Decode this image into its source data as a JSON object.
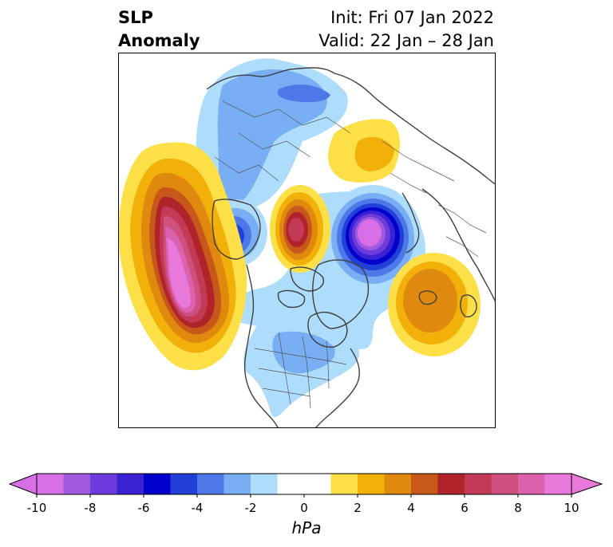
{
  "title": {
    "left_line1": "SLP",
    "left_line2": "Anomaly",
    "right_line1": "Init: Fri 07 Jan 2022",
    "right_line2": "Valid: 22 Jan – 28 Jan"
  },
  "colorbar": {
    "ticks": [
      "-10",
      "-8",
      "-6",
      "-4",
      "-2",
      "0",
      "2",
      "4",
      "6",
      "8",
      "10"
    ],
    "unit": "hPa",
    "colors": [
      "#d96fe6",
      "#a15adf",
      "#6d3bdc",
      "#3a22d4",
      "#0000cd",
      "#2140d8",
      "#4e78e8",
      "#78aef3",
      "#aedcfb",
      "#ffffff",
      "#ffffff",
      "#fde047",
      "#f2b10a",
      "#df8a0e",
      "#c8571a",
      "#b0232a",
      "#c23a55",
      "#cf4f7f",
      "#db63ad",
      "#e878da"
    ],
    "under_color": "#d96fe6",
    "over_color": "#e878da"
  },
  "map": {
    "anomalies": [
      {
        "region": "north-pacific-high",
        "max_hpa": 10
      },
      {
        "region": "alaska-low",
        "min_hpa": -5
      },
      {
        "region": "central-arctic-high",
        "max_hpa": 7
      },
      {
        "region": "barents-kara-low",
        "min_hpa": -10
      },
      {
        "region": "north-atlantic-high",
        "max_hpa": 5
      },
      {
        "region": "eastern-siberia-high",
        "max_hpa": 3
      }
    ]
  }
}
